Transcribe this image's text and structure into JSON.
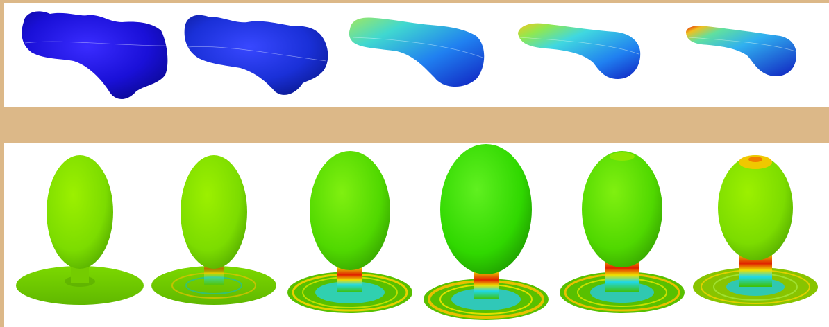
{
  "figure": {
    "top_row": {
      "description_hidden": "",
      "frames": [
        {
          "shape": "blob",
          "colormap_stage": 0
        },
        {
          "shape": "blob",
          "colormap_stage": 1
        },
        {
          "shape": "tube",
          "colormap_stage": 2
        },
        {
          "shape": "tube",
          "colormap_stage": 3
        },
        {
          "shape": "tube",
          "colormap_stage": 4
        }
      ]
    },
    "bottom_row": {
      "frames": [
        {
          "shape": "droplet-on-disk",
          "ring_intensity": 0
        },
        {
          "shape": "droplet-on-disk",
          "ring_intensity": 1
        },
        {
          "shape": "droplet-on-disk",
          "ring_intensity": 2
        },
        {
          "shape": "droplet-on-disk",
          "ring_intensity": 3
        },
        {
          "shape": "droplet-on-disk",
          "ring_intensity": 4
        },
        {
          "shape": "droplet-on-disk",
          "ring_intensity": 5
        }
      ]
    },
    "colors": {
      "background_tan": "#dcb888",
      "panel_white": "#ffffff",
      "deep_blue": "#1a10d8",
      "cyan": "#20d8e8",
      "green": "#70e800",
      "yellow": "#e8e000",
      "red": "#e01000"
    }
  }
}
